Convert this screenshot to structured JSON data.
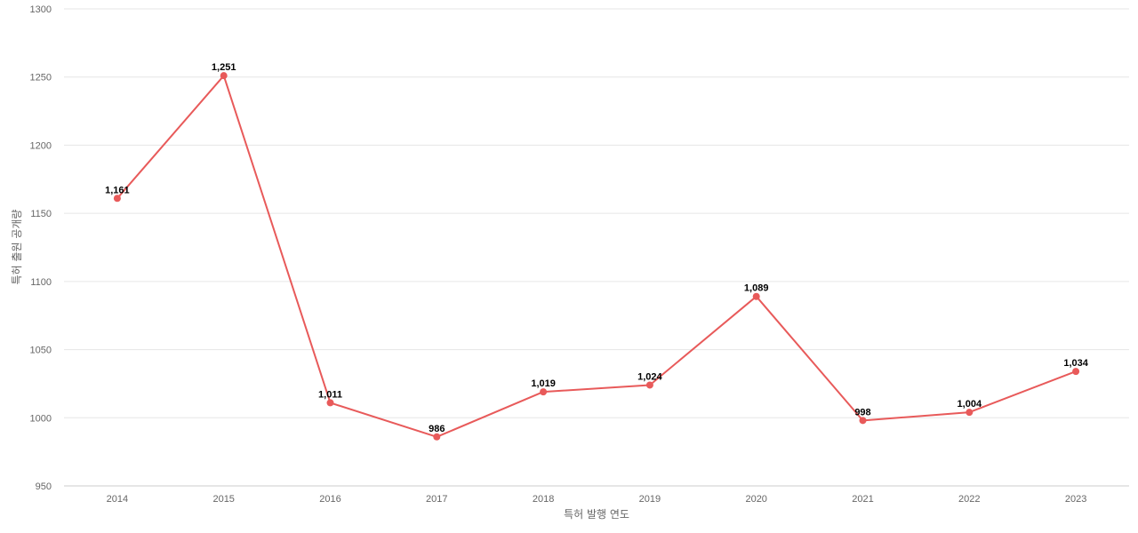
{
  "chart_data": {
    "type": "line",
    "title": "",
    "xlabel": "특허 발행 연도",
    "ylabel": "특허 출원 공개량",
    "ylim": [
      950,
      1300
    ],
    "yticks": [
      "950",
      "1000",
      "1050",
      "1100",
      "1150",
      "1200",
      "1250",
      "1300"
    ],
    "grid": true,
    "legend": "none",
    "categories": [
      "2014",
      "2015",
      "2016",
      "2017",
      "2018",
      "2019",
      "2020",
      "2021",
      "2022",
      "2023"
    ],
    "series": [
      {
        "values": [
          1161,
          1251,
          1011,
          986,
          1019,
          1024,
          1089,
          998,
          1004,
          1034
        ],
        "labels": [
          "1,161",
          "1,251",
          "1,011",
          "986",
          "1,019",
          "1,024",
          "1,089",
          "998",
          "1,004",
          "1,034"
        ],
        "color": "#e85a5a"
      }
    ],
    "colors": {
      "grid": "#e6e6e6",
      "axis_text": "#666666",
      "label_text": "#000000"
    }
  }
}
